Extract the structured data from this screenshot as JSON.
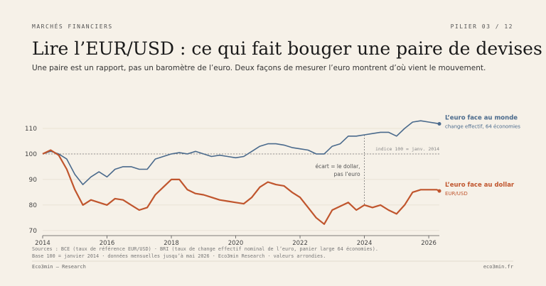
{
  "header": {
    "kicker": "MARCHÉS FINANCIERS",
    "pillar": "PILIER 03 / 12",
    "title": "Lire l’EUR/USD : ce qui fait bouger une paire de devises",
    "subtitle": "Une paire est un rapport, pas un baromètre de l’euro. Deux façons de mesurer l’euro montrent d’où vient le mouvement."
  },
  "chart_data": {
    "type": "line",
    "x": [
      2014,
      2014.25,
      2014.5,
      2014.75,
      2015,
      2015.25,
      2015.5,
      2015.75,
      2016,
      2016.25,
      2016.5,
      2016.75,
      2017,
      2017.25,
      2017.5,
      2017.75,
      2018,
      2018.25,
      2018.5,
      2018.75,
      2019,
      2019.25,
      2019.5,
      2019.75,
      2020,
      2020.25,
      2020.5,
      2020.75,
      2021,
      2021.25,
      2021.5,
      2021.75,
      2022,
      2022.25,
      2022.5,
      2022.75,
      2023,
      2023.25,
      2023.5,
      2023.75,
      2024,
      2024.25,
      2024.5,
      2024.75,
      2025,
      2025.25,
      2025.5,
      2025.75,
      2026,
      2026.25,
      2026.33
    ],
    "series": [
      {
        "name": "L’euro face au monde",
        "note": "change effectif, 64 économies",
        "color": "#4a6a8c",
        "values": [
          100,
          101,
          100,
          98,
          92,
          88,
          91,
          93,
          91,
          94,
          95,
          95,
          94,
          94,
          98,
          99,
          100,
          100.5,
          100,
          101,
          100,
          99,
          99.5,
          99,
          98.5,
          99,
          101,
          103,
          104,
          104,
          103.5,
          102.5,
          102,
          101.5,
          100,
          100,
          103,
          104,
          107,
          107,
          107.5,
          108,
          108.5,
          108.5,
          107,
          110,
          112.5,
          113,
          112.5,
          112,
          111.8
        ]
      },
      {
        "name": "L’euro face au dollar",
        "note": "EUR/USD",
        "color": "#c0552d",
        "values": [
          100,
          101.5,
          99.5,
          94,
          86,
          80,
          82,
          81,
          80,
          82.5,
          82,
          80,
          78,
          79,
          84,
          87,
          90,
          90,
          86,
          84.5,
          84,
          83,
          82,
          81.5,
          81,
          80.5,
          83,
          87,
          89,
          88,
          87.5,
          85,
          83,
          79,
          75,
          72.5,
          78,
          79.5,
          81,
          78,
          80,
          79,
          80,
          78,
          76.5,
          80,
          85,
          86,
          86,
          86,
          85.5
        ]
      }
    ],
    "xlim": [
      2014,
      2026.33
    ],
    "xticks": [
      2014,
      2016,
      2018,
      2020,
      2022,
      2024,
      2026
    ],
    "ylim": [
      68,
      115
    ],
    "yticks": [
      70,
      80,
      90,
      100,
      110
    ],
    "grid": true,
    "reference": {
      "value": 100,
      "label": "indice 100 = janv. 2014"
    },
    "annotation": {
      "x": 2024,
      "lines": [
        "écart = le dollar,",
        "pas l’euro"
      ]
    }
  },
  "footer": {
    "sources": [
      "Sources : BCE (taux de référence EUR/USD) · BRI (taux de change effectif nominal de l’euro, panier large 64 économies).",
      "Base 100 = janvier 2014 · données mensuelles jusqu’à mai 2026 · Eco3min Research · valeurs arrondies."
    ],
    "brand": "Eco3min — Research",
    "site": "eco3min.fr"
  }
}
